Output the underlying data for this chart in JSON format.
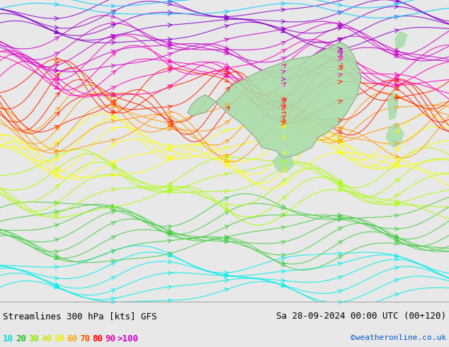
{
  "title_left": "Streamlines 300 hPa [kts] GFS",
  "title_right": "Sa 28-09-2024 00:00 UTC (00+120)",
  "credit": "©weatheronline.co.uk",
  "bg_color": "#d8d8d8",
  "legend_values": [
    "10",
    "20",
    "30",
    "40",
    "50",
    "60",
    "70",
    "80",
    "90",
    ">100"
  ],
  "legend_colors": [
    "#00ffff",
    "#00cc00",
    "#33ff33",
    "#aaff00",
    "#ffff00",
    "#ffaa00",
    "#ff6600",
    "#ff0000",
    "#cc00cc",
    "#9900cc"
  ],
  "speed_colors": {
    "10": "#00ffff",
    "20": "#00cc00",
    "30": "#88ff00",
    "40": "#ccff00",
    "50": "#ffff00",
    "60": "#ffaa00",
    "70": "#ff5500",
    "80": "#ff0000",
    "90": "#ff00aa",
    "100": "#cc00cc"
  },
  "land_color": "#aaddaa",
  "ocean_color": "#e8e8e8",
  "figsize": [
    6.34,
    4.9
  ],
  "dpi": 100
}
